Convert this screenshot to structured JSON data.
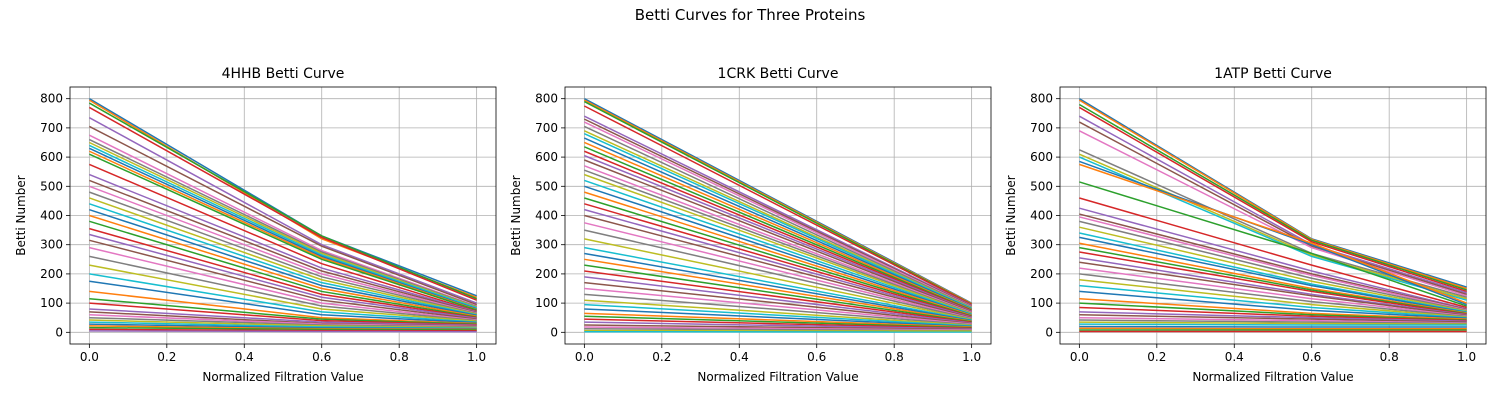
{
  "figure": {
    "suptitle": "Betti Curves for Three Proteins"
  },
  "palette": [
    "#1f77b4",
    "#ff7f0e",
    "#2ca02c",
    "#d62728",
    "#9467bd",
    "#8c564b",
    "#e377c2",
    "#7f7f7f",
    "#bcbd22",
    "#17becf"
  ],
  "chart_data": [
    {
      "type": "line",
      "title": "4HHB Betti Curve",
      "xlabel": "Normalized Filtration Value",
      "ylabel": "Betti Number",
      "xlim": [
        -0.05,
        1.05
      ],
      "ylim": [
        -40,
        840
      ],
      "xticks": [
        0.0,
        0.2,
        0.4,
        0.6,
        0.8,
        1.0
      ],
      "yticks": [
        0,
        100,
        200,
        300,
        400,
        500,
        600,
        700,
        800
      ],
      "grid": true,
      "x": [
        0.0,
        0.6,
        1.0
      ],
      "series": [
        {
          "values": [
            800,
            330,
            125
          ]
        },
        {
          "values": [
            795,
            320,
            120
          ]
        },
        {
          "values": [
            785,
            330,
            115
          ]
        },
        {
          "values": [
            770,
            325,
            110
          ]
        },
        {
          "values": [
            735,
            300,
            100
          ]
        },
        {
          "values": [
            705,
            295,
            95
          ]
        },
        {
          "values": [
            675,
            280,
            90
          ]
        },
        {
          "values": [
            660,
            275,
            88
          ]
        },
        {
          "values": [
            650,
            270,
            86
          ]
        },
        {
          "values": [
            640,
            265,
            84
          ]
        },
        {
          "values": [
            630,
            260,
            80
          ]
        },
        {
          "values": [
            620,
            255,
            78
          ]
        },
        {
          "values": [
            610,
            250,
            76
          ]
        },
        {
          "values": [
            575,
            235,
            72
          ]
        },
        {
          "values": [
            540,
            220,
            70
          ]
        },
        {
          "values": [
            520,
            210,
            68
          ]
        },
        {
          "values": [
            500,
            200,
            66
          ]
        },
        {
          "values": [
            480,
            190,
            64
          ]
        },
        {
          "values": [
            460,
            180,
            62
          ]
        },
        {
          "values": [
            440,
            170,
            60
          ]
        },
        {
          "values": [
            420,
            160,
            58
          ]
        },
        {
          "values": [
            400,
            150,
            55
          ]
        },
        {
          "values": [
            380,
            140,
            52
          ]
        },
        {
          "values": [
            355,
            130,
            50
          ]
        },
        {
          "values": [
            335,
            120,
            48
          ]
        },
        {
          "values": [
            315,
            110,
            45
          ]
        },
        {
          "values": [
            290,
            100,
            42
          ]
        },
        {
          "values": [
            260,
            90,
            40
          ]
        },
        {
          "values": [
            230,
            80,
            38
          ]
        },
        {
          "values": [
            200,
            70,
            35
          ]
        },
        {
          "values": [
            175,
            60,
            33
          ]
        },
        {
          "values": [
            140,
            50,
            30
          ]
        },
        {
          "values": [
            115,
            45,
            28
          ]
        },
        {
          "values": [
            100,
            40,
            26
          ]
        },
        {
          "values": [
            80,
            35,
            24
          ]
        },
        {
          "values": [
            70,
            30,
            22
          ]
        },
        {
          "values": [
            60,
            28,
            20
          ]
        },
        {
          "values": [
            50,
            25,
            18
          ]
        },
        {
          "values": [
            42,
            22,
            16
          ]
        },
        {
          "values": [
            35,
            18,
            14
          ]
        },
        {
          "values": [
            28,
            15,
            12
          ]
        },
        {
          "values": [
            22,
            12,
            10
          ]
        },
        {
          "values": [
            16,
            10,
            8
          ]
        },
        {
          "values": [
            10,
            6,
            5
          ]
        },
        {
          "values": [
            5,
            3,
            2
          ]
        }
      ]
    },
    {
      "type": "line",
      "title": "1CRK Betti Curve",
      "xlabel": "Normalized Filtration Value",
      "ylabel": "Betti Number",
      "xlim": [
        -0.05,
        1.05
      ],
      "ylim": [
        -40,
        840
      ],
      "xticks": [
        0.0,
        0.2,
        0.4,
        0.6,
        0.8,
        1.0
      ],
      "yticks": [
        0,
        100,
        200,
        300,
        400,
        500,
        600,
        700,
        800
      ],
      "grid": true,
      "x": [
        0.0,
        1.0
      ],
      "series": [
        {
          "values": [
            800,
            100
          ]
        },
        {
          "values": [
            795,
            98
          ]
        },
        {
          "values": [
            790,
            96
          ]
        },
        {
          "values": [
            775,
            95
          ]
        },
        {
          "values": [
            740,
            92
          ]
        },
        {
          "values": [
            730,
            90
          ]
        },
        {
          "values": [
            720,
            88
          ]
        },
        {
          "values": [
            705,
            86
          ]
        },
        {
          "values": [
            690,
            84
          ]
        },
        {
          "values": [
            680,
            82
          ]
        },
        {
          "values": [
            665,
            80
          ]
        },
        {
          "values": [
            650,
            78
          ]
        },
        {
          "values": [
            635,
            76
          ]
        },
        {
          "values": [
            620,
            74
          ]
        },
        {
          "values": [
            605,
            72
          ]
        },
        {
          "values": [
            590,
            70
          ]
        },
        {
          "values": [
            570,
            68
          ]
        },
        {
          "values": [
            555,
            66
          ]
        },
        {
          "values": [
            540,
            64
          ]
        },
        {
          "values": [
            520,
            62
          ]
        },
        {
          "values": [
            500,
            60
          ]
        },
        {
          "values": [
            480,
            58
          ]
        },
        {
          "values": [
            460,
            56
          ]
        },
        {
          "values": [
            440,
            54
          ]
        },
        {
          "values": [
            420,
            52
          ]
        },
        {
          "values": [
            400,
            50
          ]
        },
        {
          "values": [
            375,
            48
          ]
        },
        {
          "values": [
            350,
            46
          ]
        },
        {
          "values": [
            320,
            44
          ]
        },
        {
          "values": [
            290,
            42
          ]
        },
        {
          "values": [
            270,
            40
          ]
        },
        {
          "values": [
            250,
            38
          ]
        },
        {
          "values": [
            230,
            36
          ]
        },
        {
          "values": [
            210,
            34
          ]
        },
        {
          "values": [
            190,
            32
          ]
        },
        {
          "values": [
            170,
            30
          ]
        },
        {
          "values": [
            150,
            28
          ]
        },
        {
          "values": [
            130,
            26
          ]
        },
        {
          "values": [
            110,
            24
          ]
        },
        {
          "values": [
            95,
            22
          ]
        },
        {
          "values": [
            80,
            20
          ]
        },
        {
          "values": [
            65,
            18
          ]
        },
        {
          "values": [
            55,
            16
          ]
        },
        {
          "values": [
            45,
            14
          ]
        },
        {
          "values": [
            35,
            12
          ]
        },
        {
          "values": [
            25,
            10
          ]
        },
        {
          "values": [
            18,
            8
          ]
        },
        {
          "values": [
            12,
            6
          ]
        },
        {
          "values": [
            6,
            4
          ]
        },
        {
          "values": [
            2,
            1
          ]
        }
      ]
    },
    {
      "type": "line",
      "title": "1ATP Betti Curve",
      "xlabel": "Normalized Filtration Value",
      "ylabel": "Betti Number",
      "xlim": [
        -0.05,
        1.05
      ],
      "ylim": [
        -40,
        840
      ],
      "xticks": [
        0.0,
        0.2,
        0.4,
        0.6,
        0.8,
        1.0
      ],
      "yticks": [
        0,
        100,
        200,
        300,
        400,
        500,
        600,
        700,
        800
      ],
      "grid": true,
      "x": [
        0.0,
        0.6,
        1.0
      ],
      "series": [
        {
          "values": [
            800,
            320,
            155
          ]
        },
        {
          "values": [
            795,
            318,
            150
          ]
        },
        {
          "values": [
            780,
            315,
            145
          ]
        },
        {
          "values": [
            770,
            310,
            140
          ]
        },
        {
          "values": [
            740,
            300,
            135
          ]
        },
        {
          "values": [
            720,
            295,
            130
          ]
        },
        {
          "values": [
            690,
            290,
            125
          ]
        },
        {
          "values": [
            625,
            270,
            120
          ]
        },
        {
          "values": [
            610,
            265,
            115
          ]
        },
        {
          "values": [
            600,
            260,
            110
          ]
        },
        {
          "values": [
            585,
            300,
            95
          ]
        },
        {
          "values": [
            575,
            305,
            100
          ]
        },
        {
          "values": [
            515,
            270,
            90
          ]
        },
        {
          "values": [
            460,
            230,
            85
          ]
        },
        {
          "values": [
            425,
            210,
            80
          ]
        },
        {
          "values": [
            405,
            200,
            78
          ]
        },
        {
          "values": [
            395,
            195,
            76
          ]
        },
        {
          "values": [
            380,
            185,
            74
          ]
        },
        {
          "values": [
            360,
            175,
            72
          ]
        },
        {
          "values": [
            340,
            165,
            70
          ]
        },
        {
          "values": [
            325,
            160,
            68
          ]
        },
        {
          "values": [
            305,
            150,
            66
          ]
        },
        {
          "values": [
            290,
            145,
            64
          ]
        },
        {
          "values": [
            275,
            140,
            62
          ]
        },
        {
          "values": [
            255,
            130,
            60
          ]
        },
        {
          "values": [
            240,
            125,
            58
          ]
        },
        {
          "values": [
            220,
            115,
            56
          ]
        },
        {
          "values": [
            200,
            105,
            54
          ]
        },
        {
          "values": [
            180,
            95,
            52
          ]
        },
        {
          "values": [
            160,
            85,
            50
          ]
        },
        {
          "values": [
            140,
            75,
            48
          ]
        },
        {
          "values": [
            115,
            65,
            45
          ]
        },
        {
          "values": [
            100,
            60,
            42
          ]
        },
        {
          "values": [
            85,
            55,
            40
          ]
        },
        {
          "values": [
            70,
            50,
            38
          ]
        },
        {
          "values": [
            60,
            45,
            35
          ]
        },
        {
          "values": [
            50,
            40,
            32
          ]
        },
        {
          "values": [
            42,
            35,
            30
          ]
        },
        {
          "values": [
            35,
            30,
            28
          ]
        },
        {
          "values": [
            28,
            25,
            25
          ]
        },
        {
          "values": [
            20,
            18,
            18
          ]
        },
        {
          "values": [
            14,
            12,
            12
          ]
        },
        {
          "values": [
            8,
            8,
            8
          ]
        },
        {
          "values": [
            3,
            3,
            3
          ]
        }
      ]
    }
  ]
}
